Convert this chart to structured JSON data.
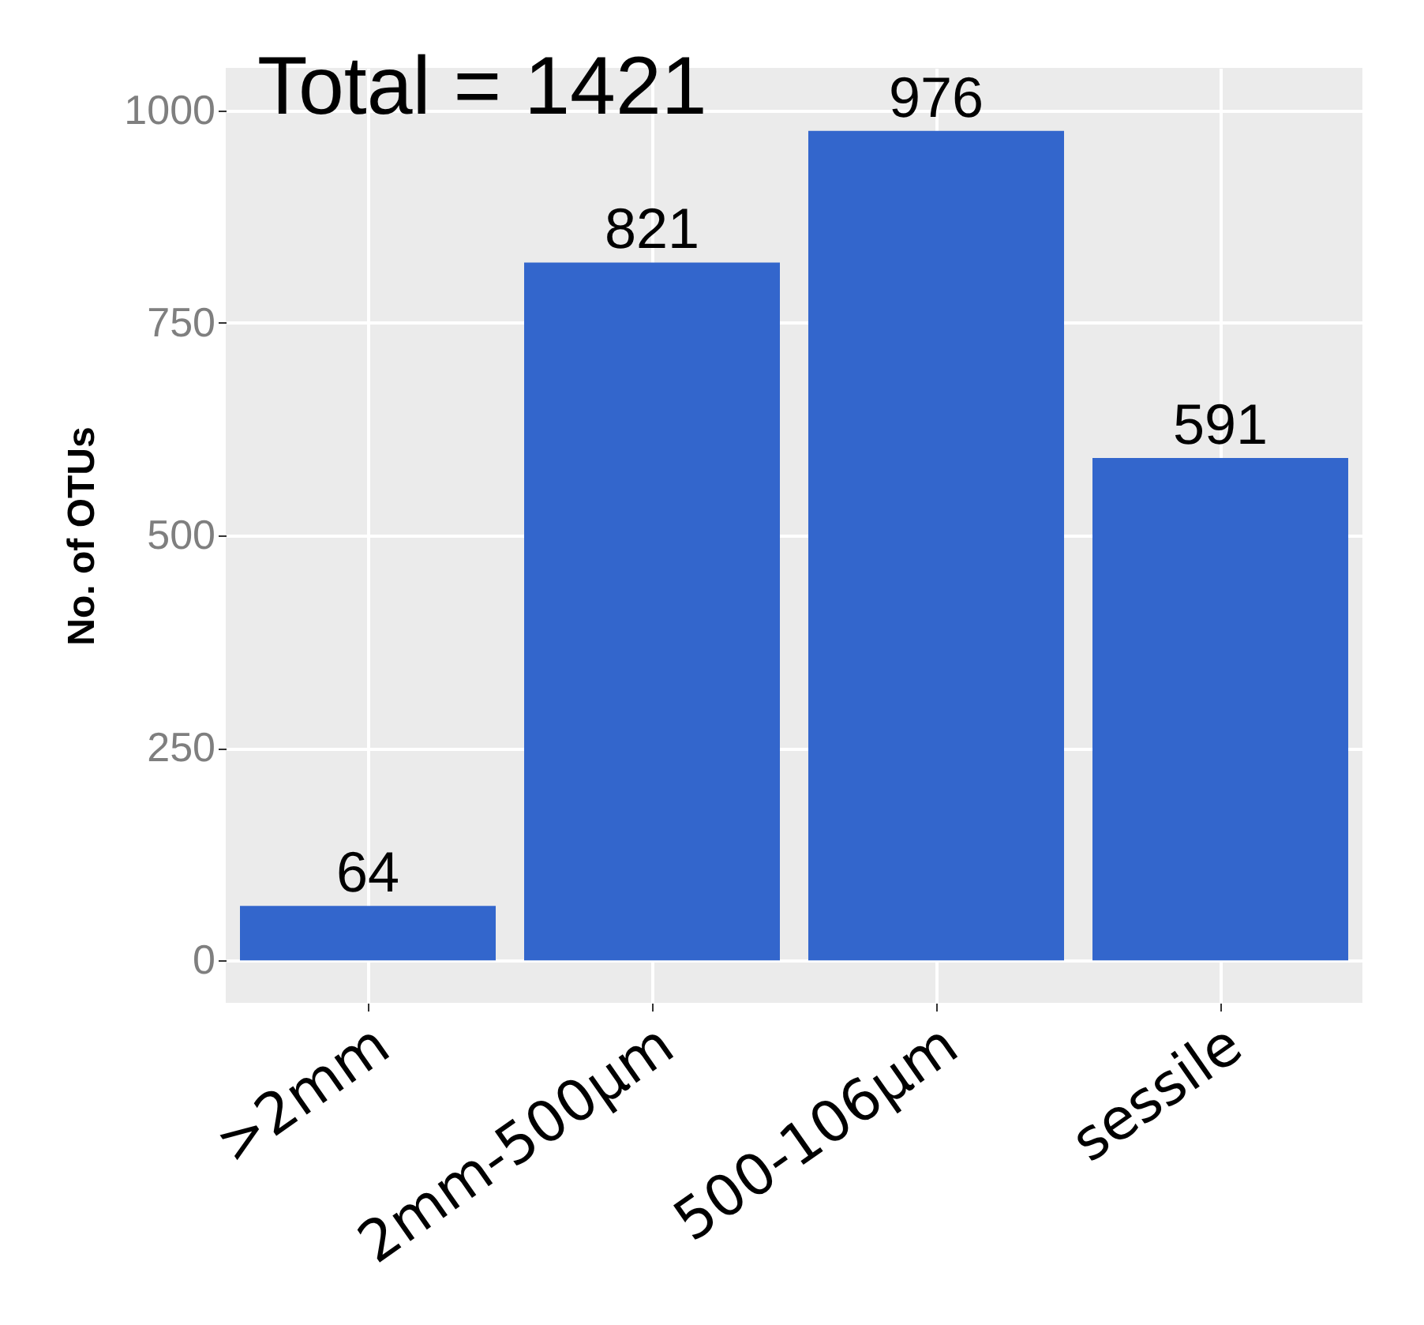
{
  "chart_data": {
    "type": "bar",
    "ylabel": "No. of OTUs",
    "categories": [
      ">2mm",
      "2mm-500µm",
      "500-106µm",
      "sessile"
    ],
    "values": [
      64,
      821,
      976,
      591
    ],
    "color": "#3366cc",
    "ylim": [
      -50,
      1050
    ],
    "yticks": [
      0,
      250,
      500,
      750,
      1000
    ],
    "grid": true,
    "data_labels": true,
    "annotations": [
      "Total = 1421"
    ]
  }
}
